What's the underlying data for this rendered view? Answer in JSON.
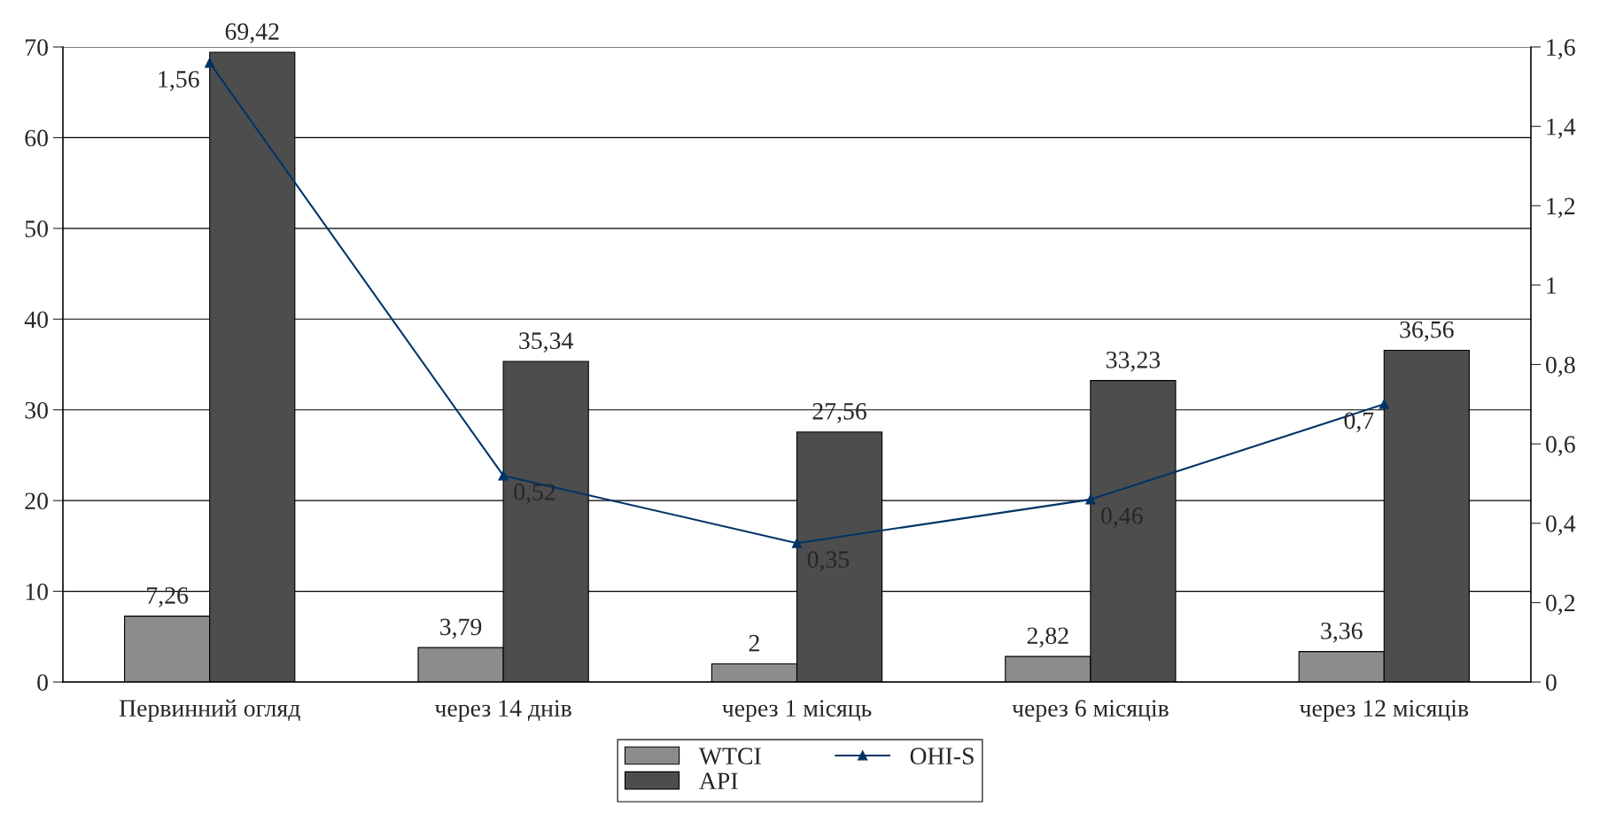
{
  "chart_data": {
    "type": "bar",
    "categories": [
      "Первинний огляд",
      "через 14 днів",
      "через 1 місяць",
      "через 6 місяців",
      "через 12 місяців"
    ],
    "series": [
      {
        "name": "WTCI",
        "color": "#8c8c8c",
        "values": [
          7.26,
          3.79,
          2,
          2.82,
          3.36
        ],
        "value_labels": [
          "7,26",
          "3,79",
          "2",
          "2,82",
          "3,36"
        ]
      },
      {
        "name": "API",
        "color": "#4d4d4d",
        "values": [
          69.42,
          35.34,
          27.56,
          33.23,
          36.56
        ],
        "value_labels": [
          "69,42",
          "35,34",
          "27,56",
          "33,23",
          "36,56"
        ]
      },
      {
        "name": "OHI-S",
        "type": "line",
        "axis": "y2",
        "color": "#003366",
        "marker": "triangle",
        "values": [
          1.56,
          0.52,
          0.35,
          0.46,
          0.7
        ],
        "value_labels": [
          "1,56",
          "0,52",
          "0,35",
          "0,46",
          "0,7"
        ]
      }
    ],
    "ylim": [
      0,
      70
    ],
    "yticks": [
      0,
      10,
      20,
      30,
      40,
      50,
      60,
      70
    ],
    "y2lim": [
      0,
      1.6
    ],
    "y2ticks": [
      0,
      {
        "value": 0.2,
        "label": "0,2"
      },
      {
        "value": 0.4,
        "label": "0,4"
      },
      {
        "value": 0.6,
        "label": "0,6"
      },
      {
        "value": 0.8,
        "label": "0,8"
      },
      1,
      {
        "value": 1.2,
        "label": "1,2"
      },
      {
        "value": 1.4,
        "label": "1,4"
      },
      {
        "value": 1.6,
        "label": "1,6"
      }
    ],
    "grid": "y",
    "legend": "bottom"
  }
}
